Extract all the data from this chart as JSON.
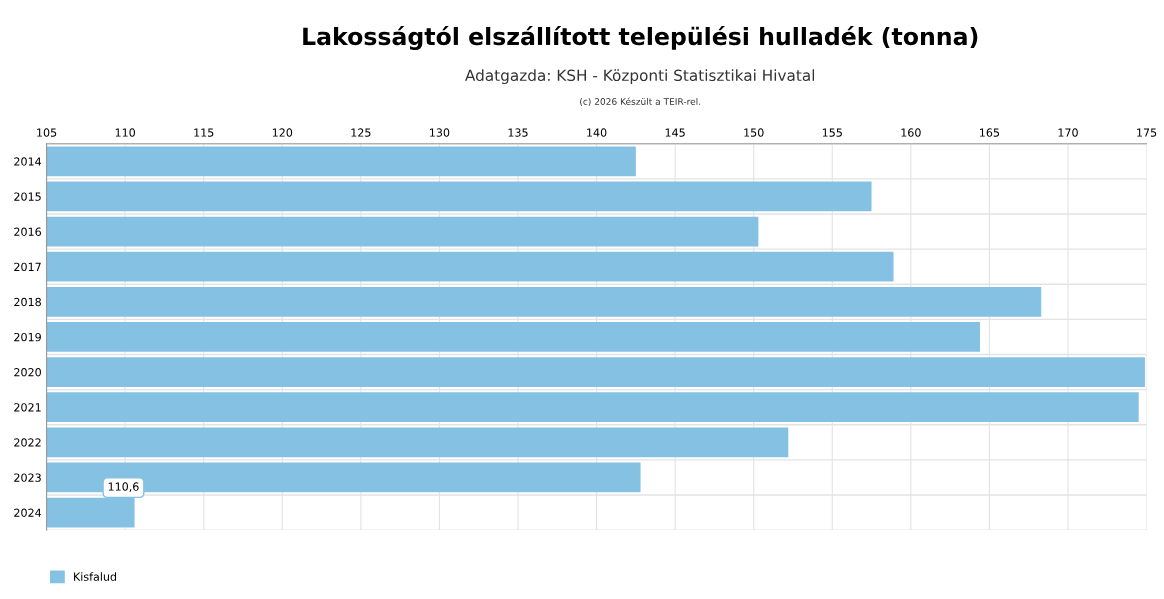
{
  "chart_data": {
    "type": "bar",
    "orientation": "horizontal",
    "title": "Lakosságtól elszállított települési hulladék (tonna)",
    "subtitle": "Adatgazda: KSH - Központi Statisztikai Hivatal",
    "annotations": [
      "(c) 2026 Készült a TEIR-rel."
    ],
    "categories": [
      "2014",
      "2015",
      "2016",
      "2017",
      "2018",
      "2019",
      "2020",
      "2021",
      "2022",
      "2023",
      "2024"
    ],
    "series": [
      {
        "name": "Kisfalud",
        "color": "#85c1e3",
        "values": [
          142.5,
          157.5,
          150.3,
          158.9,
          168.3,
          164.4,
          174.9,
          174.5,
          152.2,
          142.8,
          110.6
        ]
      }
    ],
    "value_labels": [
      null,
      null,
      null,
      null,
      null,
      null,
      null,
      null,
      null,
      null,
      "110,6"
    ],
    "xlim": [
      105,
      175
    ],
    "xticks": [
      105,
      110,
      115,
      120,
      125,
      130,
      135,
      140,
      145,
      150,
      155,
      160,
      165,
      170,
      175
    ],
    "grid": true,
    "legend": "bottom left"
  }
}
